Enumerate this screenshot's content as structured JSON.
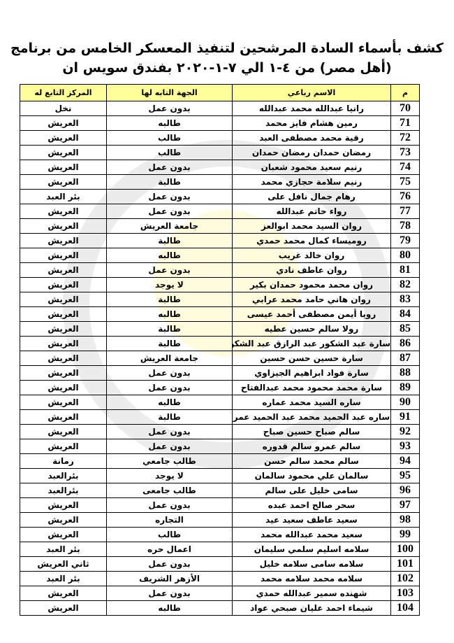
{
  "title_line1": "كشف بأسماء السادة المرشحين لتنفيذ المعسكر الخامس من برنامج",
  "title_line2": "(أهل مصر) من ٤-١ الي ٧-١-٢٠٢٠ بفندق سويس ان",
  "headers": {
    "num": "م",
    "name": "الاسم رباعي",
    "entity": "الجهة التابه لها",
    "center": "المركز التابع له"
  },
  "header_color": "#ffff99",
  "rows": [
    {
      "num": "70",
      "name": "رانيا عبدالله محمد عبدالله",
      "entity": "بدون عمل",
      "center": "نخل"
    },
    {
      "num": "71",
      "name": "رمين هشام فايز محمد",
      "entity": "طالبه",
      "center": "العريش"
    },
    {
      "num": "72",
      "name": "رقية محمد مصطفى العبد",
      "entity": "طالب",
      "center": "العريش"
    },
    {
      "num": "73",
      "name": "رمضان حمدان رمضان حمدان",
      "entity": "طالب",
      "center": "العريش"
    },
    {
      "num": "74",
      "name": "رنيم سعيد محمود شعبان",
      "entity": "بدون عمل",
      "center": "العريش"
    },
    {
      "num": "75",
      "name": "رنيم سلامة حجازي محمد",
      "entity": "طالبة",
      "center": "العريش"
    },
    {
      "num": "76",
      "name": "رهام جمال نافل على",
      "entity": "بدون عمل",
      "center": "بئر العبد"
    },
    {
      "num": "77",
      "name": "رواء حاتم عبدالله",
      "entity": "بدون عمل",
      "center": "العريش"
    },
    {
      "num": "78",
      "name": "روان السيد محمد ابوالعز",
      "entity": "جامعة العريش",
      "center": "العريش"
    },
    {
      "num": "79",
      "name": "روميساء كمال محمد حمدي",
      "entity": "طالبة",
      "center": "العريش"
    },
    {
      "num": "80",
      "name": "روان خالد غريب",
      "entity": "طالبه",
      "center": "العريش"
    },
    {
      "num": "81",
      "name": "روان عاطف نادي",
      "entity": "بدون عمل",
      "center": "العريش"
    },
    {
      "num": "82",
      "name": "روان محمد محمود حمدان بكير",
      "entity": "لا يوجد",
      "center": "العريش"
    },
    {
      "num": "83",
      "name": "روان هاني حامد محمد عرابي",
      "entity": "طالبة",
      "center": "العريش"
    },
    {
      "num": "84",
      "name": "رويا أيمن مصطفى أحمد عيسى",
      "entity": "طالبه",
      "center": "العريش"
    },
    {
      "num": "85",
      "name": "رولا سالم حسين عطيه",
      "entity": "طالبة",
      "center": "العريش"
    },
    {
      "num": "86",
      "name": "سارة عبد الشكور عبد الرازق عبد الشكور",
      "entity": "طالبة",
      "center": "العريش"
    },
    {
      "num": "87",
      "name": "سارة حسين حسن حسين",
      "entity": "جامعة العريش",
      "center": "العريش"
    },
    {
      "num": "88",
      "name": "سارة فواد ابراهيم الجيزاوي",
      "entity": "بدون عمل",
      "center": "العريش"
    },
    {
      "num": "89",
      "name": "سارة محمد محمود محمد عبدالفتاح",
      "entity": "بدون عمل",
      "center": "العريش"
    },
    {
      "num": "90",
      "name": "ساره السيد محمد عماره",
      "entity": "طالبه",
      "center": "العريش"
    },
    {
      "num": "91",
      "name": "ساره عبد الحميد محمد عبد الحميد عمر",
      "entity": "طالبة",
      "center": "العريش"
    },
    {
      "num": "92",
      "name": "سالم صباح حسين صباح",
      "entity": "بدون عمل",
      "center": "العريش"
    },
    {
      "num": "93",
      "name": "سالم عمرو سالم قدوره",
      "entity": "بدون عمل",
      "center": "العريش"
    },
    {
      "num": "94",
      "name": "سالم محمد سالم حسن",
      "entity": "طالب جامعي",
      "center": "رمانة"
    },
    {
      "num": "95",
      "name": "سالمان علي محمود سالمان",
      "entity": "لا يوجد",
      "center": "بئرالعبد"
    },
    {
      "num": "96",
      "name": "سامى خليل على سالم",
      "entity": "طالب جامعى",
      "center": "بئرالعبد"
    },
    {
      "num": "97",
      "name": "سحر صالح احمد عبده",
      "entity": "بدون عمل",
      "center": "العريش"
    },
    {
      "num": "98",
      "name": "سعيد عاطف سعيد عيد",
      "entity": "التجاره",
      "center": "العريش"
    },
    {
      "num": "99",
      "name": "سعيد محمد عبدالله محمد",
      "entity": "طالب",
      "center": "العريش"
    },
    {
      "num": "100",
      "name": "سلامه اسليم سلمي سليمان",
      "entity": "اعمال حره",
      "center": "بئر العبد"
    },
    {
      "num": "101",
      "name": "سلامه سامى سلامه خليل",
      "entity": "بدون عمل",
      "center": "ثاني العريش"
    },
    {
      "num": "102",
      "name": "سلامه محمد سلامه محمد",
      "entity": "الأزهر الشريف",
      "center": "بئر العبد"
    },
    {
      "num": "103",
      "name": "شهنده سمير عبدالله حمدي",
      "entity": "بدون عمل",
      "center": "العريش"
    },
    {
      "num": "104",
      "name": "شيماء احمد عليان صبحي عواد",
      "entity": "طالبه",
      "center": "العريش"
    }
  ]
}
